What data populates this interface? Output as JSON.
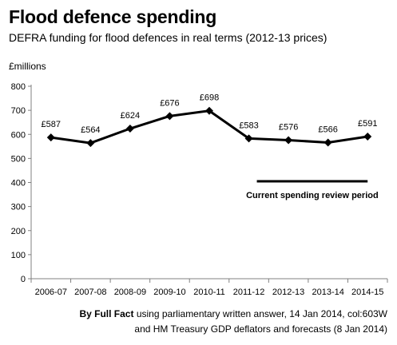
{
  "chart_data": {
    "type": "line",
    "title": "Flood defence spending",
    "subtitle": "DEFRA funding for flood defences in real terms (2012-13 prices)",
    "ylabel": "£millions",
    "xlabel": "",
    "ylim": [
      0,
      800
    ],
    "yticks": [
      0,
      100,
      200,
      300,
      400,
      500,
      600,
      700,
      800
    ],
    "categories": [
      "2006-07",
      "2007-08",
      "2008-09",
      "2009-10",
      "2010-11",
      "2011-12",
      "2012-13",
      "2013-14",
      "2014-15"
    ],
    "values": [
      587,
      564,
      624,
      676,
      698,
      583,
      576,
      566,
      591
    ],
    "data_labels": [
      "£587",
      "£564",
      "£624",
      "£676",
      "£698",
      "£583",
      "£576",
      "£566",
      "£591"
    ],
    "marker": "diamond",
    "grid": false,
    "legend": "none",
    "annotation": {
      "text": "Current spending review period",
      "from_category": "2011-12",
      "to_category": "2014-15",
      "y": 405
    }
  },
  "source": {
    "by_label": "By Full Fact",
    "line1_rest": " using parliamentary written answer, 14 Jan 2014, col:603W",
    "line2": "and HM Treasury GDP deflators and forecasts (8 Jan 2014)"
  },
  "colors": {
    "line": "#000000",
    "axis": "#808080"
  }
}
